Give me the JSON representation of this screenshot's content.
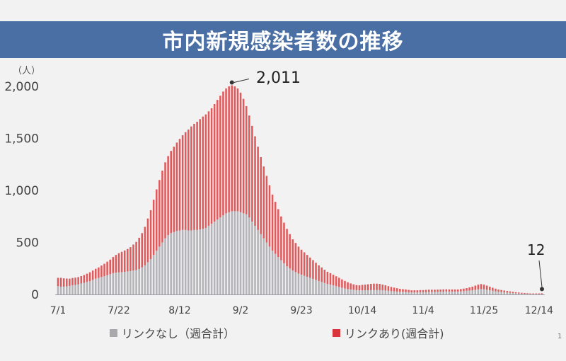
{
  "title": "市内新規感染者数の推移",
  "page_marker": "1",
  "chart_data": {
    "type": "bar",
    "stacked": true,
    "title": "市内新規感染者数の推移",
    "y_unit": "（人）",
    "ylim": [
      0,
      2000
    ],
    "yticks": [
      0,
      500,
      1000,
      1500,
      2000
    ],
    "ytick_labels": [
      "0",
      "500",
      "1,000",
      "1,500",
      "2,000"
    ],
    "x_start_label": "7/1",
    "x_end_label": "12/14",
    "xtick_labels": [
      "7/1",
      "7/22",
      "8/12",
      "9/2",
      "9/23",
      "10/14",
      "11/4",
      "11/25",
      "12/14"
    ],
    "xtick_day_index": [
      0,
      21,
      42,
      63,
      84,
      105,
      126,
      147,
      166
    ],
    "grid": false,
    "legend_position": "bottom",
    "colors": {
      "link_none": "#b3b3b8",
      "link_yes": "#e05a5c"
    },
    "series": [
      {
        "name": "リンクなし（週合計）",
        "values": [
          80,
          75,
          75,
          78,
          82,
          88,
          92,
          97,
          105,
          112,
          120,
          128,
          140,
          152,
          160,
          168,
          175,
          185,
          195,
          205,
          210,
          212,
          215,
          218,
          222,
          225,
          230,
          235,
          245,
          260,
          280,
          310,
          340,
          380,
          420,
          460,
          500,
          540,
          570,
          590,
          600,
          610,
          615,
          620,
          620,
          615,
          615,
          620,
          620,
          625,
          630,
          640,
          660,
          680,
          700,
          720,
          740,
          760,
          780,
          790,
          800,
          800,
          800,
          790,
          780,
          770,
          740,
          700,
          660,
          620,
          580,
          540,
          500,
          460,
          420,
          390,
          360,
          330,
          300,
          270,
          250,
          230,
          215,
          200,
          190,
          180,
          170,
          160,
          150,
          140,
          130,
          120,
          110,
          100,
          95,
          88,
          80,
          72,
          65,
          58,
          52,
          48,
          45,
          42,
          40,
          40,
          40,
          40,
          42,
          42,
          42,
          42,
          40,
          38,
          35,
          32,
          30,
          28,
          26,
          25,
          24,
          22,
          20,
          20,
          20,
          22,
          22,
          22,
          24,
          24,
          24,
          25,
          26,
          27,
          28,
          28,
          28,
          28,
          28,
          30,
          32,
          35,
          38,
          40,
          45,
          50,
          52,
          50,
          45,
          40,
          35,
          30,
          26,
          23,
          20,
          18,
          16,
          14,
          12,
          10,
          8,
          7,
          6,
          5,
          5,
          5,
          4,
          4
        ]
      },
      {
        "name": "リンクあり(週合計)",
        "values": [
          80,
          85,
          80,
          75,
          70,
          70,
          70,
          70,
          72,
          75,
          80,
          85,
          90,
          95,
          100,
          110,
          120,
          130,
          140,
          155,
          170,
          185,
          195,
          205,
          215,
          230,
          250,
          270,
          300,
          330,
          370,
          420,
          470,
          530,
          590,
          640,
          690,
          730,
          760,
          790,
          820,
          850,
          880,
          910,
          940,
          970,
          1000,
          1020,
          1040,
          1060,
          1080,
          1090,
          1100,
          1110,
          1130,
          1150,
          1170,
          1190,
          1200,
          1210,
          1210,
          1200,
          1180,
          1150,
          1100,
          1040,
          980,
          920,
          860,
          800,
          740,
          690,
          640,
          590,
          540,
          500,
          460,
          420,
          390,
          360,
          330,
          300,
          280,
          260,
          240,
          225,
          210,
          195,
          180,
          165,
          150,
          140,
          128,
          118,
          110,
          102,
          95,
          88,
          80,
          72,
          65,
          58,
          52,
          48,
          48,
          52,
          55,
          58,
          60,
          62,
          62,
          60,
          55,
          50,
          45,
          40,
          36,
          32,
          28,
          26,
          24,
          22,
          20,
          20,
          20,
          20,
          20,
          22,
          22,
          22,
          22,
          22,
          22,
          22,
          22,
          20,
          20,
          20,
          20,
          22,
          24,
          26,
          30,
          35,
          40,
          45,
          48,
          45,
          40,
          35,
          30,
          26,
          22,
          20,
          18,
          16,
          14,
          12,
          10,
          9,
          8,
          7,
          6,
          5,
          5,
          5,
          6,
          7,
          8
        ]
      }
    ],
    "annotations": [
      {
        "label": "2,011",
        "total": 2011
      },
      {
        "label": "12",
        "total": 12
      }
    ]
  }
}
